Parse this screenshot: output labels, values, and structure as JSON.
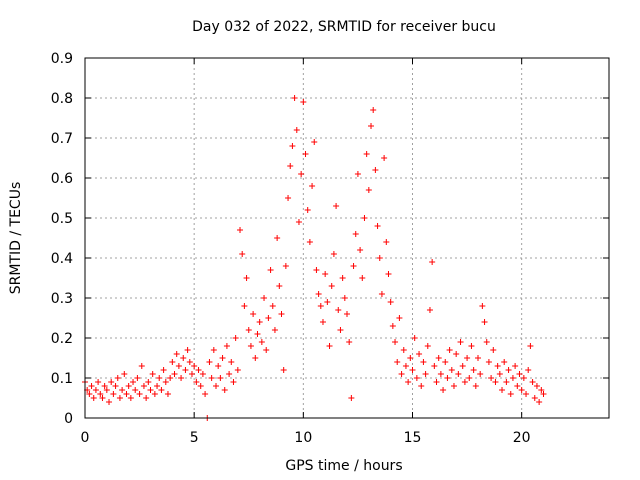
{
  "chart_data": {
    "type": "scatter",
    "title": "Day 032 of 2022, SRMTID for receiver bucu",
    "xlabel": "GPS time / hours",
    "ylabel": "SRMTID / TECUs",
    "xlim": [
      0,
      24
    ],
    "ylim": [
      0,
      0.9
    ],
    "x_ticks": [
      0,
      5,
      10,
      15,
      20
    ],
    "y_ticks": [
      0,
      0.1,
      0.2,
      0.3,
      0.4,
      0.5,
      0.6,
      0.7,
      0.8,
      0.9
    ],
    "x_tick_labels": [
      "0",
      "5",
      "10",
      "15",
      "20"
    ],
    "y_tick_labels": [
      "0",
      "0.1",
      "0.2",
      "0.3",
      "0.4",
      "0.5",
      "0.6",
      "0.7",
      "0.8",
      "0.9"
    ],
    "grid": true,
    "marker": "+",
    "marker_color": "#ff0000",
    "series": [
      {
        "name": "SRMTID",
        "points": [
          [
            0.0,
            0.09
          ],
          [
            0.1,
            0.07
          ],
          [
            0.2,
            0.06
          ],
          [
            0.3,
            0.08
          ],
          [
            0.4,
            0.05
          ],
          [
            0.5,
            0.07
          ],
          [
            0.6,
            0.09
          ],
          [
            0.7,
            0.06
          ],
          [
            0.8,
            0.05
          ],
          [
            0.9,
            0.08
          ],
          [
            1.0,
            0.07
          ],
          [
            1.1,
            0.04
          ],
          [
            1.2,
            0.09
          ],
          [
            1.3,
            0.06
          ],
          [
            1.4,
            0.08
          ],
          [
            1.5,
            0.1
          ],
          [
            1.6,
            0.05
          ],
          [
            1.7,
            0.07
          ],
          [
            1.8,
            0.11
          ],
          [
            1.9,
            0.06
          ],
          [
            2.0,
            0.08
          ],
          [
            2.1,
            0.05
          ],
          [
            2.2,
            0.09
          ],
          [
            2.3,
            0.07
          ],
          [
            2.4,
            0.1
          ],
          [
            2.5,
            0.06
          ],
          [
            2.6,
            0.13
          ],
          [
            2.7,
            0.08
          ],
          [
            2.8,
            0.05
          ],
          [
            2.9,
            0.09
          ],
          [
            3.0,
            0.07
          ],
          [
            3.1,
            0.11
          ],
          [
            3.2,
            0.06
          ],
          [
            3.3,
            0.08
          ],
          [
            3.4,
            0.1
          ],
          [
            3.5,
            0.07
          ],
          [
            3.6,
            0.12
          ],
          [
            3.7,
            0.09
          ],
          [
            3.8,
            0.06
          ],
          [
            3.9,
            0.1
          ],
          [
            4.0,
            0.14
          ],
          [
            4.1,
            0.11
          ],
          [
            4.2,
            0.16
          ],
          [
            4.3,
            0.13
          ],
          [
            4.4,
            0.1
          ],
          [
            4.5,
            0.15
          ],
          [
            4.6,
            0.12
          ],
          [
            4.7,
            0.17
          ],
          [
            4.8,
            0.14
          ],
          [
            4.9,
            0.11
          ],
          [
            5.0,
            0.13
          ],
          [
            5.1,
            0.09
          ],
          [
            5.2,
            0.12
          ],
          [
            5.3,
            0.08
          ],
          [
            5.4,
            0.11
          ],
          [
            5.5,
            0.06
          ],
          [
            5.6,
            0.0
          ],
          [
            5.7,
            0.14
          ],
          [
            5.8,
            0.1
          ],
          [
            5.9,
            0.17
          ],
          [
            6.0,
            0.08
          ],
          [
            6.1,
            0.13
          ],
          [
            6.2,
            0.1
          ],
          [
            6.3,
            0.15
          ],
          [
            6.4,
            0.07
          ],
          [
            6.5,
            0.18
          ],
          [
            6.6,
            0.11
          ],
          [
            6.7,
            0.14
          ],
          [
            6.8,
            0.09
          ],
          [
            6.9,
            0.2
          ],
          [
            7.0,
            0.12
          ],
          [
            7.1,
            0.47
          ],
          [
            7.2,
            0.41
          ],
          [
            7.3,
            0.28
          ],
          [
            7.4,
            0.35
          ],
          [
            7.5,
            0.22
          ],
          [
            7.6,
            0.18
          ],
          [
            7.7,
            0.26
          ],
          [
            7.8,
            0.15
          ],
          [
            7.9,
            0.21
          ],
          [
            8.0,
            0.24
          ],
          [
            8.1,
            0.19
          ],
          [
            8.2,
            0.3
          ],
          [
            8.3,
            0.17
          ],
          [
            8.4,
            0.25
          ],
          [
            8.5,
            0.37
          ],
          [
            8.6,
            0.28
          ],
          [
            8.7,
            0.22
          ],
          [
            8.8,
            0.45
          ],
          [
            8.9,
            0.33
          ],
          [
            9.0,
            0.26
          ],
          [
            9.1,
            0.12
          ],
          [
            9.2,
            0.38
          ],
          [
            9.3,
            0.55
          ],
          [
            9.4,
            0.63
          ],
          [
            9.5,
            0.68
          ],
          [
            9.6,
            0.8
          ],
          [
            9.7,
            0.72
          ],
          [
            9.8,
            0.49
          ],
          [
            9.9,
            0.61
          ],
          [
            10.0,
            0.79
          ],
          [
            10.1,
            0.66
          ],
          [
            10.2,
            0.52
          ],
          [
            10.3,
            0.44
          ],
          [
            10.4,
            0.58
          ],
          [
            10.5,
            0.69
          ],
          [
            10.6,
            0.37
          ],
          [
            10.7,
            0.31
          ],
          [
            10.8,
            0.28
          ],
          [
            10.9,
            0.24
          ],
          [
            11.0,
            0.36
          ],
          [
            11.1,
            0.29
          ],
          [
            11.2,
            0.18
          ],
          [
            11.3,
            0.33
          ],
          [
            11.4,
            0.41
          ],
          [
            11.5,
            0.53
          ],
          [
            11.6,
            0.27
          ],
          [
            11.7,
            0.22
          ],
          [
            11.8,
            0.35
          ],
          [
            11.9,
            0.3
          ],
          [
            12.0,
            0.26
          ],
          [
            12.1,
            0.19
          ],
          [
            12.2,
            0.05
          ],
          [
            12.3,
            0.38
          ],
          [
            12.4,
            0.46
          ],
          [
            12.5,
            0.61
          ],
          [
            12.6,
            0.42
          ],
          [
            12.7,
            0.35
          ],
          [
            12.8,
            0.5
          ],
          [
            12.9,
            0.66
          ],
          [
            13.0,
            0.57
          ],
          [
            13.1,
            0.73
          ],
          [
            13.2,
            0.77
          ],
          [
            13.3,
            0.62
          ],
          [
            13.4,
            0.48
          ],
          [
            13.5,
            0.4
          ],
          [
            13.6,
            0.31
          ],
          [
            13.7,
            0.65
          ],
          [
            13.8,
            0.44
          ],
          [
            13.9,
            0.36
          ],
          [
            14.0,
            0.29
          ],
          [
            14.1,
            0.23
          ],
          [
            14.2,
            0.19
          ],
          [
            14.3,
            0.14
          ],
          [
            14.4,
            0.25
          ],
          [
            14.5,
            0.11
          ],
          [
            14.6,
            0.17
          ],
          [
            14.7,
            0.13
          ],
          [
            14.8,
            0.09
          ],
          [
            14.9,
            0.15
          ],
          [
            15.0,
            0.12
          ],
          [
            15.1,
            0.2
          ],
          [
            15.2,
            0.1
          ],
          [
            15.3,
            0.16
          ],
          [
            15.4,
            0.08
          ],
          [
            15.5,
            0.14
          ],
          [
            15.6,
            0.11
          ],
          [
            15.7,
            0.18
          ],
          [
            15.8,
            0.27
          ],
          [
            15.9,
            0.39
          ],
          [
            16.0,
            0.13
          ],
          [
            16.1,
            0.09
          ],
          [
            16.2,
            0.15
          ],
          [
            16.3,
            0.11
          ],
          [
            16.4,
            0.07
          ],
          [
            16.5,
            0.14
          ],
          [
            16.6,
            0.1
          ],
          [
            16.7,
            0.17
          ],
          [
            16.8,
            0.12
          ],
          [
            16.9,
            0.08
          ],
          [
            17.0,
            0.16
          ],
          [
            17.1,
            0.11
          ],
          [
            17.2,
            0.19
          ],
          [
            17.3,
            0.13
          ],
          [
            17.4,
            0.09
          ],
          [
            17.5,
            0.15
          ],
          [
            17.6,
            0.1
          ],
          [
            17.7,
            0.18
          ],
          [
            17.8,
            0.12
          ],
          [
            17.9,
            0.08
          ],
          [
            18.0,
            0.15
          ],
          [
            18.1,
            0.11
          ],
          [
            18.2,
            0.28
          ],
          [
            18.3,
            0.24
          ],
          [
            18.4,
            0.19
          ],
          [
            18.5,
            0.14
          ],
          [
            18.6,
            0.1
          ],
          [
            18.7,
            0.17
          ],
          [
            18.8,
            0.09
          ],
          [
            18.9,
            0.13
          ],
          [
            19.0,
            0.11
          ],
          [
            19.1,
            0.07
          ],
          [
            19.2,
            0.14
          ],
          [
            19.3,
            0.09
          ],
          [
            19.4,
            0.12
          ],
          [
            19.5,
            0.06
          ],
          [
            19.6,
            0.1
          ],
          [
            19.7,
            0.13
          ],
          [
            19.8,
            0.08
          ],
          [
            19.9,
            0.11
          ],
          [
            20.0,
            0.07
          ],
          [
            20.1,
            0.1
          ],
          [
            20.2,
            0.06
          ],
          [
            20.3,
            0.12
          ],
          [
            20.4,
            0.18
          ],
          [
            20.5,
            0.09
          ],
          [
            20.6,
            0.05
          ],
          [
            20.7,
            0.08
          ],
          [
            20.8,
            0.04
          ],
          [
            20.9,
            0.07
          ],
          [
            21.0,
            0.06
          ]
        ]
      }
    ]
  }
}
